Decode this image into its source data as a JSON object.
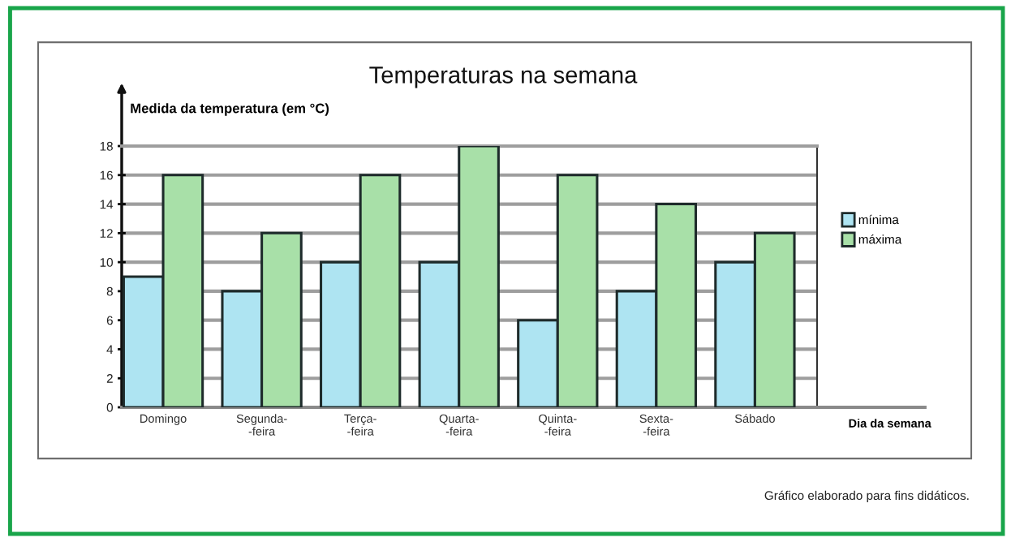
{
  "chart_data": {
    "type": "bar",
    "title": "Temperaturas na semana",
    "ylabel": "Medida da temperatura (em °C)",
    "xlabel": "Dia da semana",
    "categories": [
      "Domingo",
      "Segunda-\n-feira",
      "Terça-\n-feira",
      "Quarta-\n-feira",
      "Quinta-\n-feira",
      "Sexta-\n-feira",
      "Sábado"
    ],
    "series": [
      {
        "name": "mínima",
        "color": "#aee4f2",
        "values": [
          9,
          8,
          10,
          10,
          6,
          8,
          10
        ]
      },
      {
        "name": "máxima",
        "color": "#a8e0a8",
        "values": [
          16,
          12,
          16,
          18,
          16,
          14,
          12
        ]
      }
    ],
    "ylim": [
      0,
      18
    ],
    "yticks": [
      0,
      2,
      4,
      6,
      8,
      10,
      12,
      14,
      16,
      18
    ],
    "grid": "y",
    "legend": "right",
    "annotations": [
      "Gráfico elaborado para fins didáticos."
    ]
  }
}
